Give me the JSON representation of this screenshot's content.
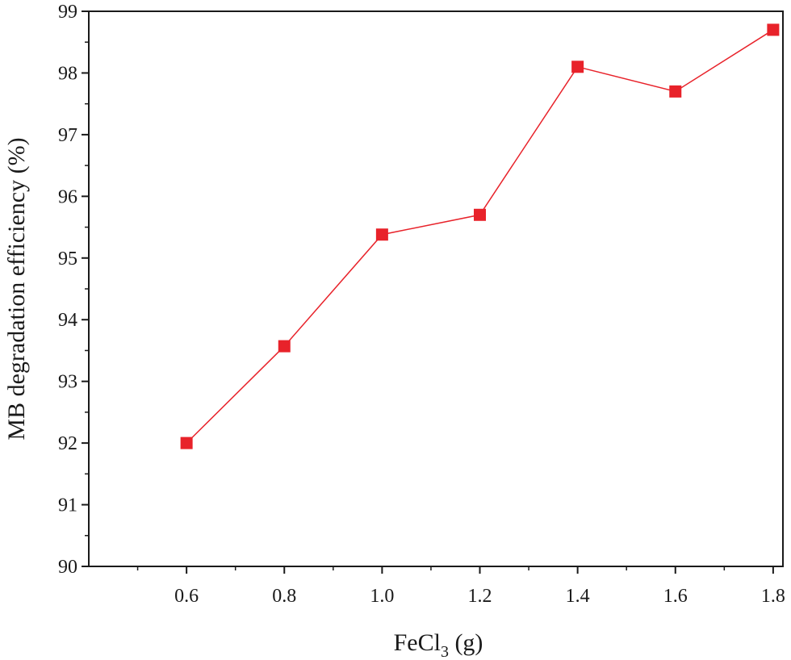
{
  "chart_data": {
    "type": "line",
    "title": "",
    "x": [
      0.6,
      0.8,
      1.0,
      1.2,
      1.4,
      1.6,
      1.8
    ],
    "x_tick_labels": [
      "0.6",
      "0.8",
      "1.0",
      "1.2",
      "1.4",
      "1.6",
      "1.8"
    ],
    "series": [
      {
        "values": [
          92.0,
          93.57,
          95.38,
          95.7,
          98.1,
          97.7,
          98.7
        ]
      }
    ],
    "xlabel_main": "FeCl",
    "xlabel_sub": "3",
    "xlabel_unit": " (g)",
    "ylabel": "MB degradation efficiency (%)",
    "xlim": [
      0.4,
      1.82
    ],
    "ylim": [
      90,
      99
    ],
    "y_ticks": [
      "90",
      "91",
      "92",
      "93",
      "94",
      "95",
      "96",
      "97",
      "98",
      "99"
    ],
    "grid": false,
    "marker": "square",
    "colors": {
      "series": "#e8222a",
      "axis": "#1a1a1a"
    }
  }
}
